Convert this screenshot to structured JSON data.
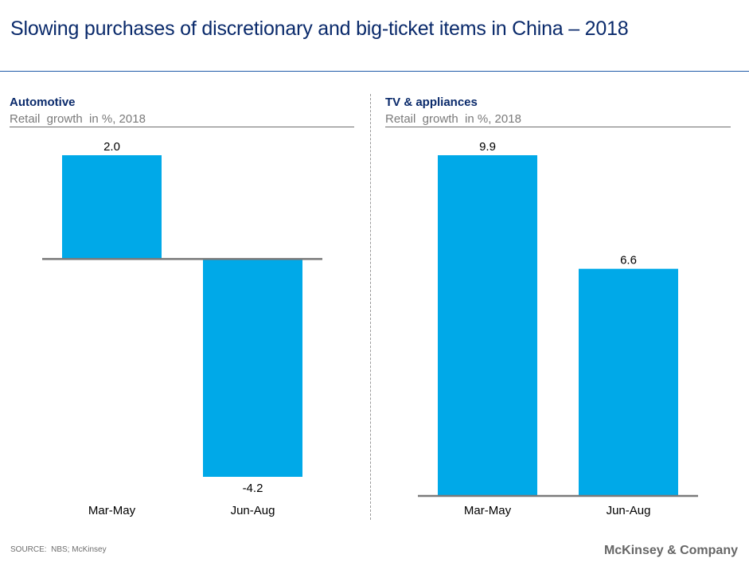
{
  "title": "Slowing purchases of discretionary and big-ticket items in China – 2018",
  "source": "SOURCE:  NBS; McKinsey",
  "brand": "McKinsey & Company",
  "colors": {
    "bar": "#00a9e8",
    "axis": "#7a7a7a",
    "title": "#0a2a6b"
  },
  "chart_data": [
    {
      "type": "bar",
      "title": "Automotive",
      "subtitle": "Retail  growth  in %, 2018",
      "categories": [
        "Mar-May",
        "Jun-Aug"
      ],
      "values": [
        2.0,
        -4.2
      ],
      "value_labels": [
        "2.0",
        "-4.2"
      ],
      "ylim": [
        -4.2,
        2.0
      ]
    },
    {
      "type": "bar",
      "title": "TV & appliances",
      "subtitle": "Retail  growth  in %, 2018",
      "categories": [
        "Mar-May",
        "Jun-Aug"
      ],
      "values": [
        9.9,
        6.6
      ],
      "value_labels": [
        "9.9",
        "6.6"
      ],
      "ylim": [
        0,
        9.9
      ]
    }
  ]
}
